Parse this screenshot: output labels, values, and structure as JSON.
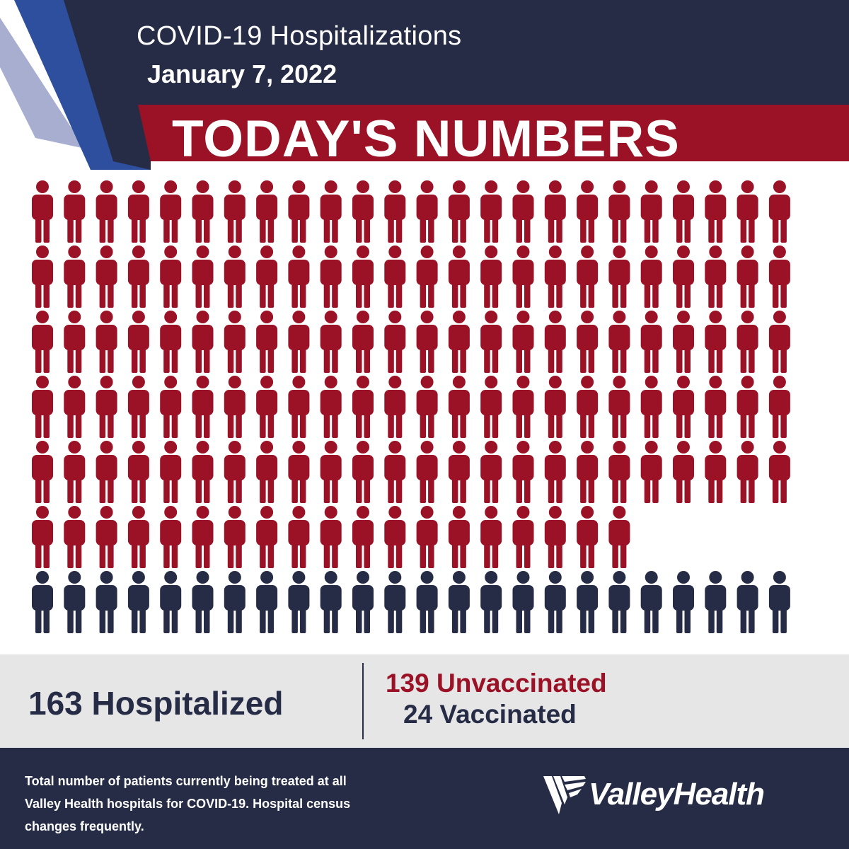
{
  "header": {
    "title": "COVID-19 Hospitalizations",
    "date": "January 7, 2022",
    "banner": "TODAY'S NUMBERS"
  },
  "colors": {
    "navy": "#262c46",
    "red": "#9b1226",
    "stripe_blue": "#2e4e9e",
    "stripe_light": "#a8aed0",
    "stats_band": "#e6e6e7"
  },
  "chart_data": {
    "type": "pictogram",
    "series": [
      {
        "name": "Unvaccinated",
        "value": 139,
        "color": "#9b1226"
      },
      {
        "name": "Vaccinated",
        "value": 24,
        "color": "#262c46"
      }
    ],
    "total": 163,
    "icons_per_row": 24
  },
  "stats": {
    "total_label": "163 Hospitalized",
    "unvaccinated_label": "139 Unvaccinated",
    "vaccinated_label": "24 Vaccinated"
  },
  "footer": {
    "note_lines": [
      "Total number of patients currently being treated at all",
      "Valley Health hospitals for COVID-19. Hospital census",
      "changes frequently."
    ],
    "logo_text": "ValleyHealth"
  }
}
